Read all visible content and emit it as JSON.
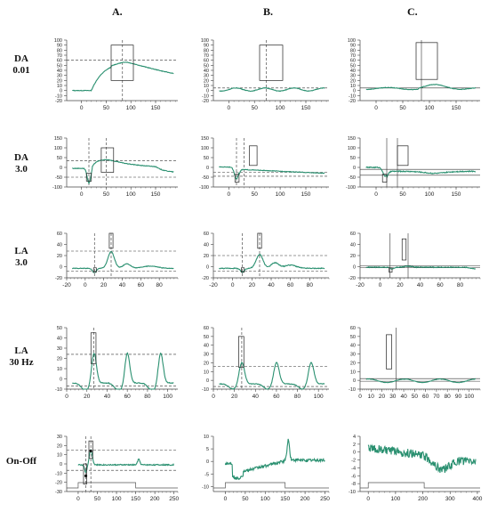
{
  "columns": [
    "A.",
    "B.",
    "C."
  ],
  "rows": [
    {
      "line1": "DA",
      "line2": "0.01"
    },
    {
      "line1": "DA",
      "line2": "3.0"
    },
    {
      "line1": "LA",
      "line2": "3.0"
    },
    {
      "line1": "LA",
      "line2": "30 Hz"
    },
    {
      "line1": "On-Off",
      "line2": ""
    }
  ],
  "colors": {
    "trace": "#2a9070",
    "axis": "#444444",
    "guide": "#333333"
  },
  "chart_data": [
    {
      "id": "A1",
      "type": "line",
      "shape": "da001a",
      "xlim": [
        -30,
        195
      ],
      "ylim": [
        -20,
        100
      ],
      "xticks": [
        0,
        50,
        100,
        150
      ],
      "yticks": [
        -20,
        -10,
        0,
        10,
        20,
        30,
        40,
        50,
        60,
        70,
        80,
        90,
        100
      ],
      "hlines": [
        60
      ],
      "vlines": [
        83
      ],
      "boxes": [
        [
          60,
          105,
          20,
          90
        ]
      ],
      "markers": []
    },
    {
      "id": "B1",
      "type": "line",
      "shape": "da001b",
      "xlim": [
        -30,
        195
      ],
      "ylim": [
        -20,
        100
      ],
      "xticks": [
        0,
        50,
        100,
        150
      ],
      "yticks": [
        -20,
        -10,
        0,
        10,
        20,
        30,
        40,
        50,
        60,
        70,
        80,
        90,
        100
      ],
      "hlines": [
        5
      ],
      "vlines": [
        73
      ],
      "boxes": [
        [
          60,
          105,
          20,
          90
        ]
      ],
      "markers": []
    },
    {
      "id": "C1",
      "type": "line",
      "shape": "da001c",
      "xlim": [
        -30,
        195
      ],
      "ylim": [
        -20,
        100
      ],
      "xticks": [
        0,
        50,
        100,
        150
      ],
      "yticks": [
        -20,
        -10,
        0,
        10,
        20,
        30,
        40,
        50,
        60,
        70,
        80,
        90,
        100
      ],
      "hlines": [
        5
      ],
      "vlines": [
        85
      ],
      "boxes": [
        [
          75,
          115,
          22,
          95
        ]
      ],
      "markers": []
    },
    {
      "id": "A2",
      "type": "line",
      "shape": "da3a",
      "xlim": [
        -30,
        195
      ],
      "ylim": [
        -100,
        150
      ],
      "xticks": [
        0,
        50,
        100,
        150
      ],
      "yticks": [
        -100,
        -50,
        0,
        50,
        100,
        150
      ],
      "hlines": [
        35,
        -50
      ],
      "vlines": [
        15,
        50
      ],
      "boxes": [
        [
          10,
          20,
          -70,
          -30
        ],
        [
          40,
          65,
          -25,
          100
        ]
      ],
      "markers": []
    },
    {
      "id": "B2",
      "type": "line",
      "shape": "da3b",
      "xlim": [
        -30,
        195
      ],
      "ylim": [
        -100,
        150
      ],
      "xticks": [
        0,
        50,
        100,
        150
      ],
      "yticks": [
        -100,
        -50,
        0,
        50,
        100,
        150
      ],
      "hlines": [
        -25,
        -45
      ],
      "vlines": [
        15,
        30
      ],
      "boxes": [
        [
          12,
          20,
          -75,
          -35
        ],
        [
          40,
          55,
          10,
          110
        ]
      ],
      "markers": []
    },
    {
      "id": "C2",
      "type": "line",
      "shape": "da3c",
      "xlim": [
        -30,
        195
      ],
      "ylim": [
        -100,
        150
      ],
      "xticks": [
        0,
        50,
        100,
        150
      ],
      "yticks": [
        -100,
        -50,
        0,
        50,
        100,
        150
      ],
      "hlines": [
        -10,
        -40
      ],
      "vlines": [
        20,
        40
      ],
      "boxes": [
        [
          12,
          20,
          -75,
          -35
        ],
        [
          40,
          60,
          10,
          110
        ]
      ],
      "markers": []
    },
    {
      "id": "A3",
      "type": "line",
      "shape": "la3a",
      "xlim": [
        -20,
        100
      ],
      "ylim": [
        -20,
        60
      ],
      "xticks": [
        -20,
        0,
        20,
        40,
        60,
        80
      ],
      "yticks": [
        -20,
        0,
        20,
        40,
        60
      ],
      "hlines": [
        28,
        -8
      ],
      "vlines": [
        10,
        28
      ],
      "boxes": [
        [
          9,
          12,
          -10,
          -2
        ],
        [
          26,
          30,
          33,
          60
        ]
      ],
      "markers": []
    },
    {
      "id": "B3",
      "type": "line",
      "shape": "la3b",
      "xlim": [
        -20,
        100
      ],
      "ylim": [
        -20,
        60
      ],
      "xticks": [
        -20,
        0,
        20,
        40,
        60,
        80
      ],
      "yticks": [
        -20,
        0,
        20,
        40,
        60
      ],
      "hlines": [
        20,
        -8
      ],
      "vlines": [
        10,
        28
      ],
      "boxes": [
        [
          9,
          12,
          -10,
          -2
        ],
        [
          26,
          30,
          33,
          60
        ]
      ],
      "markers": []
    },
    {
      "id": "C3",
      "type": "line",
      "shape": "la3c",
      "xlim": [
        -20,
        100
      ],
      "ylim": [
        -20,
        60
      ],
      "xticks": [
        -20,
        0,
        20,
        40,
        60,
        80
      ],
      "yticks": [
        -20,
        0,
        20,
        40,
        60
      ],
      "hlines": [
        2,
        -2
      ],
      "vlines": [
        10,
        28
      ],
      "boxes": [
        [
          9,
          12,
          -10,
          -2
        ],
        [
          22,
          26,
          12,
          50
        ]
      ],
      "markers": []
    },
    {
      "id": "A4",
      "type": "line",
      "shape": "la30a",
      "xlim": [
        0,
        110
      ],
      "ylim": [
        -10,
        50
      ],
      "xticks": [
        0,
        20,
        40,
        60,
        80,
        100
      ],
      "yticks": [
        -10,
        0,
        10,
        20,
        30,
        40,
        50
      ],
      "hlines": [
        24,
        -7
      ],
      "vlines": [
        27
      ],
      "boxes": [
        [
          24,
          29,
          15,
          45
        ]
      ],
      "markers": []
    },
    {
      "id": "B4",
      "type": "line",
      "shape": "la30b",
      "xlim": [
        0,
        110
      ],
      "ylim": [
        -10,
        60
      ],
      "xticks": [
        0,
        20,
        40,
        60,
        80,
        100
      ],
      "yticks": [
        -10,
        0,
        10,
        20,
        30,
        40,
        50,
        60
      ],
      "hlines": [
        16,
        -7
      ],
      "vlines": [
        27
      ],
      "boxes": [
        [
          24,
          29,
          15,
          50
        ]
      ],
      "markers": []
    },
    {
      "id": "C4",
      "type": "line",
      "shape": "la30c",
      "xlim": [
        0,
        110
      ],
      "ylim": [
        -10,
        60
      ],
      "xticks": [
        0,
        10,
        20,
        30,
        40,
        50,
        60,
        70,
        80,
        90,
        100
      ],
      "yticks": [
        -10,
        0,
        10,
        20,
        30,
        40,
        50,
        60
      ],
      "hlines": [
        2,
        -1
      ],
      "vlines": [
        33
      ],
      "boxes": [
        [
          24,
          29,
          13,
          52
        ]
      ],
      "markers": []
    },
    {
      "id": "A5",
      "type": "line",
      "shape": "onoffa",
      "xlim": [
        -30,
        260
      ],
      "ylim": [
        -30,
        30
      ],
      "xticks": [
        0,
        50,
        100,
        150,
        200,
        250
      ],
      "yticks": [
        -30,
        -20,
        -10,
        0,
        10,
        20,
        30
      ],
      "hlines": [
        15,
        -7
      ],
      "vlines": [
        20,
        33
      ],
      "boxes": [
        [
          14,
          22,
          -22,
          0
        ],
        [
          28,
          38,
          6,
          25
        ]
      ],
      "markers": [
        {
          "x": 20,
          "y": -13,
          "color": "#111"
        },
        {
          "x": 33,
          "y": 14,
          "color": "#111"
        }
      ],
      "stim": [
        -15,
        -15,
        -30,
        -30,
        150,
        150,
        260
      ]
    },
    {
      "id": "B5",
      "type": "line",
      "shape": "onoffb",
      "xlim": [
        -30,
        260
      ],
      "ylim": [
        -12,
        10
      ],
      "xticks": [
        0,
        50,
        100,
        150,
        200,
        250
      ],
      "yticks": [
        -10,
        -5,
        0,
        5,
        10
      ],
      "hlines": [],
      "vlines": [],
      "boxes": [],
      "markers": [],
      "stim": [
        -15,
        -15,
        -30,
        -30,
        150,
        150,
        260
      ]
    },
    {
      "id": "C5",
      "type": "line",
      "shape": "onoffc",
      "xlim": [
        -30,
        410
      ],
      "ylim": [
        -10,
        4
      ],
      "xticks": [
        0,
        100,
        200,
        300,
        400
      ],
      "yticks": [
        -10,
        -8,
        -6,
        -4,
        -2,
        0,
        2,
        4
      ],
      "hlines": [],
      "vlines": [],
      "boxes": [],
      "markers": [],
      "stim": [
        -15,
        -15,
        -30,
        -30,
        205,
        205,
        410
      ]
    }
  ]
}
